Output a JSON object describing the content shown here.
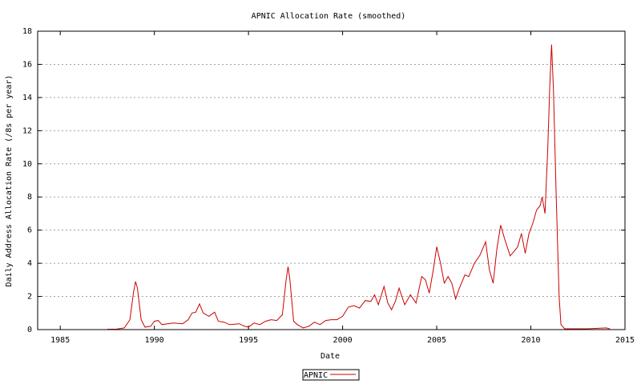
{
  "chart_data": {
    "type": "line",
    "title": "APNIC Allocation Rate (smoothed)",
    "xlabel": "Date",
    "ylabel": "Daily Address Allocation Rate (/8s per year)",
    "xlim": [
      1983.8,
      2015
    ],
    "ylim": [
      0,
      18
    ],
    "x_ticks": [
      1985,
      1990,
      1995,
      2000,
      2005,
      2010,
      2015
    ],
    "y_ticks": [
      0,
      2,
      4,
      6,
      8,
      10,
      12,
      14,
      16,
      18
    ],
    "grid": "horizontal dotted",
    "legend_position": "bottom-center",
    "series": [
      {
        "name": "APNIC",
        "color": "#cc0000",
        "points": [
          [
            1987.5,
            0.02
          ],
          [
            1988.0,
            0.03
          ],
          [
            1988.4,
            0.1
          ],
          [
            1988.7,
            0.6
          ],
          [
            1988.9,
            2.3
          ],
          [
            1989.0,
            2.9
          ],
          [
            1989.1,
            2.5
          ],
          [
            1989.3,
            0.6
          ],
          [
            1989.5,
            0.15
          ],
          [
            1989.8,
            0.2
          ],
          [
            1990.0,
            0.5
          ],
          [
            1990.2,
            0.55
          ],
          [
            1990.4,
            0.3
          ],
          [
            1990.7,
            0.35
          ],
          [
            1991.0,
            0.4
          ],
          [
            1991.5,
            0.35
          ],
          [
            1991.8,
            0.6
          ],
          [
            1992.0,
            1.0
          ],
          [
            1992.2,
            1.05
          ],
          [
            1992.4,
            1.55
          ],
          [
            1992.6,
            1.0
          ],
          [
            1992.9,
            0.8
          ],
          [
            1993.2,
            1.05
          ],
          [
            1993.4,
            0.5
          ],
          [
            1993.7,
            0.45
          ],
          [
            1994.0,
            0.3
          ],
          [
            1994.5,
            0.35
          ],
          [
            1994.8,
            0.2
          ],
          [
            1995.0,
            0.15
          ],
          [
            1995.3,
            0.4
          ],
          [
            1995.6,
            0.3
          ],
          [
            1995.9,
            0.5
          ],
          [
            1996.2,
            0.6
          ],
          [
            1996.5,
            0.55
          ],
          [
            1996.8,
            0.9
          ],
          [
            1997.0,
            3.0
          ],
          [
            1997.1,
            3.8
          ],
          [
            1997.2,
            3.0
          ],
          [
            1997.4,
            0.5
          ],
          [
            1997.6,
            0.3
          ],
          [
            1997.9,
            0.1
          ],
          [
            1998.2,
            0.2
          ],
          [
            1998.5,
            0.45
          ],
          [
            1998.8,
            0.3
          ],
          [
            1999.1,
            0.55
          ],
          [
            1999.4,
            0.6
          ],
          [
            1999.7,
            0.6
          ],
          [
            2000.0,
            0.8
          ],
          [
            2000.3,
            1.35
          ],
          [
            2000.6,
            1.45
          ],
          [
            2000.9,
            1.3
          ],
          [
            2001.2,
            1.75
          ],
          [
            2001.5,
            1.7
          ],
          [
            2001.7,
            2.1
          ],
          [
            2001.9,
            1.5
          ],
          [
            2002.2,
            2.6
          ],
          [
            2002.4,
            1.6
          ],
          [
            2002.6,
            1.2
          ],
          [
            2002.8,
            1.7
          ],
          [
            2003.0,
            2.5
          ],
          [
            2003.3,
            1.5
          ],
          [
            2003.6,
            2.1
          ],
          [
            2003.9,
            1.6
          ],
          [
            2004.2,
            3.2
          ],
          [
            2004.4,
            3.0
          ],
          [
            2004.6,
            2.2
          ],
          [
            2004.8,
            3.5
          ],
          [
            2005.0,
            5.0
          ],
          [
            2005.2,
            4.0
          ],
          [
            2005.4,
            2.8
          ],
          [
            2005.6,
            3.2
          ],
          [
            2005.8,
            2.8
          ],
          [
            2006.0,
            1.85
          ],
          [
            2006.2,
            2.5
          ],
          [
            2006.5,
            3.3
          ],
          [
            2006.7,
            3.2
          ],
          [
            2007.0,
            4.0
          ],
          [
            2007.3,
            4.5
          ],
          [
            2007.6,
            5.3
          ],
          [
            2007.8,
            3.6
          ],
          [
            2008.0,
            2.8
          ],
          [
            2008.2,
            4.9
          ],
          [
            2008.4,
            6.3
          ],
          [
            2008.6,
            5.5
          ],
          [
            2008.9,
            4.45
          ],
          [
            2009.1,
            4.7
          ],
          [
            2009.3,
            5.0
          ],
          [
            2009.5,
            5.8
          ],
          [
            2009.7,
            4.6
          ],
          [
            2009.9,
            5.8
          ],
          [
            2010.1,
            6.4
          ],
          [
            2010.3,
            7.2
          ],
          [
            2010.5,
            7.5
          ],
          [
            2010.6,
            8.0
          ],
          [
            2010.75,
            7.0
          ],
          [
            2010.9,
            11.0
          ],
          [
            2011.0,
            14.5
          ],
          [
            2011.1,
            17.2
          ],
          [
            2011.2,
            14.5
          ],
          [
            2011.35,
            8.0
          ],
          [
            2011.5,
            2.0
          ],
          [
            2011.6,
            0.3
          ],
          [
            2011.8,
            0.05
          ],
          [
            2012.5,
            0.05
          ],
          [
            2013.0,
            0.05
          ],
          [
            2014.0,
            0.1
          ],
          [
            2014.2,
            0.05
          ]
        ]
      }
    ]
  }
}
